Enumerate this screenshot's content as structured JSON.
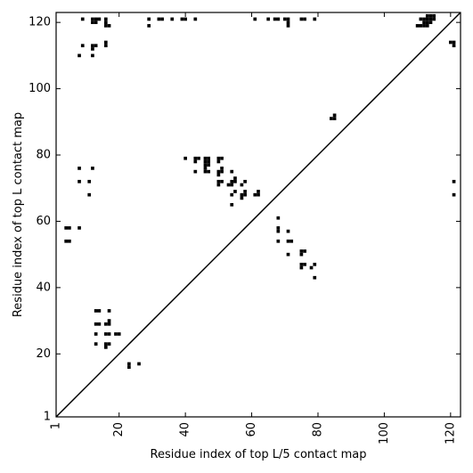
{
  "chart_data": {
    "type": "heatmap",
    "subtype": "contact-map",
    "title": "",
    "xlabel": "Residue index of top L/5 contact map",
    "ylabel": "Residue index of top L contact map",
    "xlim": [
      1,
      123
    ],
    "ylim": [
      1,
      123
    ],
    "x_ticks": [
      1,
      20,
      40,
      60,
      80,
      100,
      120
    ],
    "y_ticks": [
      1,
      20,
      40,
      60,
      80,
      100,
      120
    ],
    "x_tick_rotation_deg": 90,
    "grid": false,
    "diagonal_line": true,
    "upper_triangle_contacts": [
      [
        9,
        121
      ],
      [
        9,
        113
      ],
      [
        8,
        110
      ],
      [
        12,
        121
      ],
      [
        13,
        121
      ],
      [
        14,
        121
      ],
      [
        12,
        120
      ],
      [
        13,
        120
      ],
      [
        12,
        113
      ],
      [
        13,
        113
      ],
      [
        12,
        112
      ],
      [
        12,
        110
      ],
      [
        16,
        121
      ],
      [
        16,
        120
      ],
      [
        16,
        119
      ],
      [
        17,
        119
      ],
      [
        16,
        114
      ],
      [
        16,
        113
      ],
      [
        29,
        121
      ],
      [
        29,
        119
      ],
      [
        32,
        121
      ],
      [
        33,
        121
      ],
      [
        36,
        121
      ],
      [
        39,
        121
      ],
      [
        40,
        121
      ],
      [
        43,
        121
      ],
      [
        61,
        121
      ],
      [
        65,
        121
      ],
      [
        67,
        121
      ],
      [
        68,
        121
      ],
      [
        70,
        121
      ],
      [
        71,
        121
      ],
      [
        71,
        120
      ],
      [
        71,
        119
      ],
      [
        75,
        121
      ],
      [
        76,
        121
      ],
      [
        79,
        121
      ],
      [
        84,
        91
      ],
      [
        85,
        91
      ],
      [
        85,
        92
      ],
      [
        110,
        119
      ],
      [
        111,
        119
      ],
      [
        112,
        119
      ],
      [
        113,
        119
      ],
      [
        111,
        121
      ],
      [
        112,
        121
      ],
      [
        112,
        120
      ],
      [
        113,
        122
      ],
      [
        114,
        122
      ],
      [
        115,
        122
      ],
      [
        113,
        121
      ],
      [
        114,
        121
      ],
      [
        115,
        121
      ],
      [
        114,
        120
      ],
      [
        113,
        120
      ],
      [
        120,
        114
      ],
      [
        121,
        114
      ],
      [
        121,
        113
      ]
    ],
    "lower_triangle_contacts": [
      [
        4,
        58
      ],
      [
        5,
        58
      ],
      [
        8,
        58
      ],
      [
        4,
        54
      ],
      [
        5,
        54
      ],
      [
        8,
        76
      ],
      [
        12,
        76
      ],
      [
        8,
        72
      ],
      [
        11,
        72
      ],
      [
        11,
        68
      ],
      [
        13,
        33
      ],
      [
        14,
        33
      ],
      [
        17,
        33
      ],
      [
        13,
        29
      ],
      [
        14,
        29
      ],
      [
        16,
        29
      ],
      [
        17,
        29
      ],
      [
        17,
        30
      ],
      [
        13,
        26
      ],
      [
        16,
        26
      ],
      [
        17,
        26
      ],
      [
        19,
        26
      ],
      [
        20,
        26
      ],
      [
        13,
        23
      ],
      [
        16,
        23
      ],
      [
        17,
        23
      ],
      [
        16,
        22
      ],
      [
        23,
        17
      ],
      [
        23,
        16
      ],
      [
        26,
        17
      ],
      [
        40,
        79
      ],
      [
        43,
        79
      ],
      [
        44,
        79
      ],
      [
        43,
        78
      ],
      [
        46,
        79
      ],
      [
        47,
        79
      ],
      [
        46,
        78
      ],
      [
        47,
        78
      ],
      [
        46,
        77
      ],
      [
        47,
        77
      ],
      [
        43,
        75
      ],
      [
        46,
        75
      ],
      [
        47,
        75
      ],
      [
        46,
        76
      ],
      [
        50,
        79
      ],
      [
        51,
        79
      ],
      [
        50,
        78
      ],
      [
        51,
        75
      ],
      [
        50,
        75
      ],
      [
        50,
        74
      ],
      [
        51,
        76
      ],
      [
        54,
        75
      ],
      [
        50,
        72
      ],
      [
        51,
        72
      ],
      [
        50,
        71
      ],
      [
        53,
        71
      ],
      [
        54,
        71
      ],
      [
        54,
        72
      ],
      [
        55,
        72
      ],
      [
        55,
        73
      ],
      [
        57,
        71
      ],
      [
        58,
        72
      ],
      [
        54,
        68
      ],
      [
        55,
        69
      ],
      [
        57,
        68
      ],
      [
        58,
        68
      ],
      [
        57,
        67
      ],
      [
        58,
        69
      ],
      [
        61,
        68
      ],
      [
        62,
        68
      ],
      [
        62,
        69
      ],
      [
        54,
        65
      ],
      [
        68,
        61
      ],
      [
        68,
        58
      ],
      [
        68,
        57
      ],
      [
        71,
        57
      ],
      [
        68,
        54
      ],
      [
        71,
        54
      ],
      [
        72,
        54
      ],
      [
        71,
        50
      ],
      [
        75,
        51
      ],
      [
        76,
        51
      ],
      [
        75,
        50
      ],
      [
        75,
        47
      ],
      [
        76,
        47
      ],
      [
        75,
        46
      ],
      [
        78,
        46
      ],
      [
        79,
        47
      ],
      [
        79,
        43
      ],
      [
        121,
        72
      ],
      [
        121,
        68
      ]
    ]
  }
}
